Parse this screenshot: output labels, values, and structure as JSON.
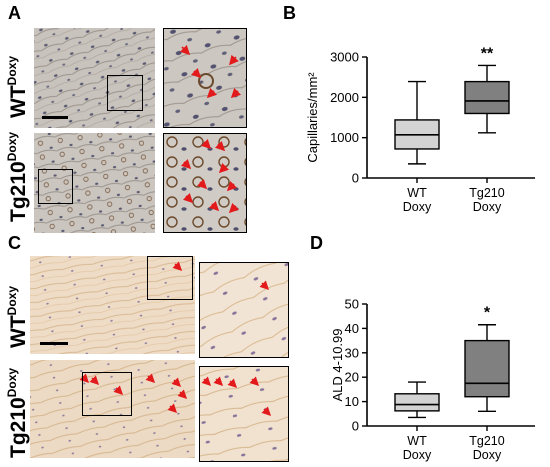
{
  "panels": {
    "A": "A",
    "B": "B",
    "C": "C",
    "D": "D"
  },
  "labels": {
    "A_wt_main": "WT",
    "A_wt_sup": "Doxy",
    "A_tg_main": "Tg210",
    "A_tg_sup": "Doxy",
    "C_wt_main": "WT",
    "C_wt_sup": "Doxy",
    "C_tg_main": "Tg210",
    "C_tg_sup": "Doxy"
  },
  "colors": {
    "marker_arrow": "#e31a1c",
    "box_light": "#d3d3d3",
    "box_dark": "#808080",
    "tissue_A": "#c9c3bd",
    "tissue_C": "#efdcc6"
  },
  "chart_data": [
    {
      "type": "box",
      "panel": "B",
      "ylabel": "Capillaries/mm²",
      "ylim": [
        0,
        3000
      ],
      "yticks": [
        0,
        1000,
        2000,
        3000
      ],
      "categories": [
        {
          "line1": "WT",
          "line2": "Doxy"
        },
        {
          "line1": "Tg210",
          "line2": "Doxy"
        }
      ],
      "boxes": [
        {
          "min": 350,
          "q1": 720,
          "median": 1070,
          "q3": 1440,
          "max": 2390,
          "fill": "#d3d3d3"
        },
        {
          "min": 1120,
          "q1": 1600,
          "median": 1910,
          "q3": 2390,
          "max": 2790,
          "fill": "#808080"
        }
      ],
      "significance": [
        {
          "index": 1,
          "label": "**"
        }
      ]
    },
    {
      "type": "box",
      "panel": "D",
      "ylabel": "ALD 4-10.99",
      "ylim": [
        0,
        50
      ],
      "yticks": [
        0,
        10,
        20,
        30,
        40,
        50
      ],
      "categories": [
        {
          "line1": "WT",
          "line2": "Doxy"
        },
        {
          "line1": "Tg210",
          "line2": "Doxy"
        }
      ],
      "boxes": [
        {
          "min": 3.5,
          "q1": 6.2,
          "median": 8.8,
          "q3": 13.2,
          "max": 18,
          "fill": "#d3d3d3"
        },
        {
          "min": 6,
          "q1": 12,
          "median": 17.5,
          "q3": 35,
          "max": 41.5,
          "fill": "#808080"
        }
      ],
      "significance": [
        {
          "index": 1,
          "label": "*"
        }
      ]
    }
  ]
}
